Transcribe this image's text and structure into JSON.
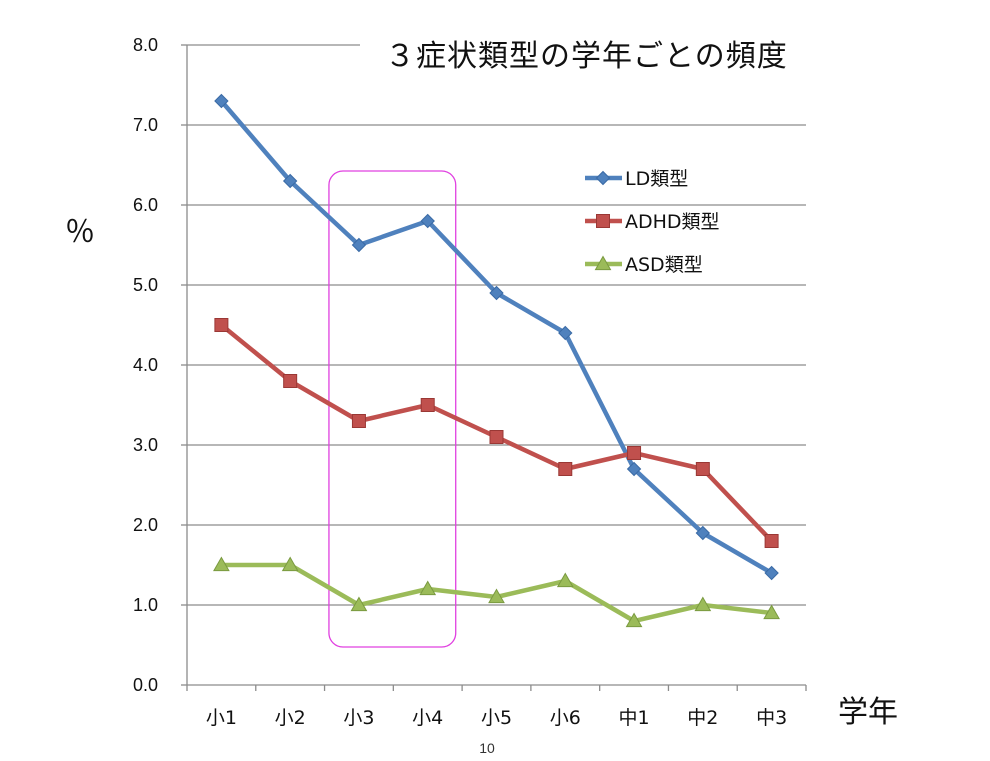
{
  "chart_data": {
    "type": "line",
    "title": "３症状類型の学年ごとの頻度",
    "xlabel": "学年",
    "ylabel": "％",
    "categories": [
      "小1",
      "小2",
      "小3",
      "小4",
      "小5",
      "小6",
      "中1",
      "中2",
      "中3"
    ],
    "ylim": [
      0,
      8
    ],
    "yticks": [
      "0.0",
      "1.0",
      "2.0",
      "3.0",
      "4.0",
      "5.0",
      "6.0",
      "7.0",
      "8.0"
    ],
    "grid": true,
    "legend_position": "right",
    "series": [
      {
        "name": "LD類型",
        "color": "#4f81bd",
        "marker": "diamond",
        "values": [
          7.3,
          6.3,
          5.5,
          5.8,
          4.9,
          4.4,
          2.7,
          1.9,
          1.4
        ]
      },
      {
        "name": "ADHD類型",
        "color": "#c0504d",
        "marker": "square",
        "values": [
          4.5,
          3.8,
          3.3,
          3.5,
          3.1,
          2.7,
          2.9,
          2.7,
          1.8
        ]
      },
      {
        "name": "ASD類型",
        "color": "#9bbb59",
        "marker": "triangle",
        "values": [
          1.5,
          1.5,
          1.0,
          1.2,
          1.1,
          1.3,
          0.8,
          1.0,
          0.9
        ]
      }
    ],
    "highlight": {
      "from": "小3",
      "to": "小4",
      "color": "#e040e0"
    }
  },
  "page_number": "10"
}
